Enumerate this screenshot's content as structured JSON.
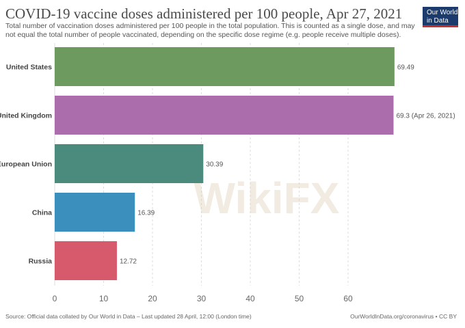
{
  "header": {
    "title": "COVID-19 vaccine doses administered per 100 people, Apr 27, 2021",
    "subtitle": "Total number of vaccination doses administered per 100 people in the total population. This is counted as a single dose, and may not equal the total number of people vaccinated, depending on the specific dose regime (e.g. people receive multiple doses)."
  },
  "logo": {
    "line1": "Our World",
    "line2": "in Data"
  },
  "footer": {
    "source": "Source: Official data collated by Our World in Data – Last updated 28 April, 12:00 (London time)",
    "url": "OurWorldInData.org/coronavirus • CC BY"
  },
  "watermark": "WikiFX",
  "chart_data": {
    "type": "bar",
    "orientation": "horizontal",
    "categories": [
      "United States",
      "United Kingdom",
      "European Union",
      "China",
      "Russia"
    ],
    "values": [
      69.49,
      69.3,
      30.39,
      16.39,
      12.72
    ],
    "labels": [
      "69.49",
      "69.3 (Apr 26, 2021)",
      "30.39",
      "16.39",
      "12.72"
    ],
    "colors": [
      "#6d9a5e",
      "#ab6dab",
      "#4a8b7e",
      "#3b8fbd",
      "#d65a6b"
    ],
    "xticks": [
      0,
      10,
      20,
      30,
      40,
      50,
      60
    ],
    "xlim": [
      0,
      70
    ],
    "grid": "vertical-dashed",
    "title": "COVID-19 vaccine doses administered per 100 people, Apr 27, 2021",
    "xlabel": "",
    "ylabel": ""
  }
}
